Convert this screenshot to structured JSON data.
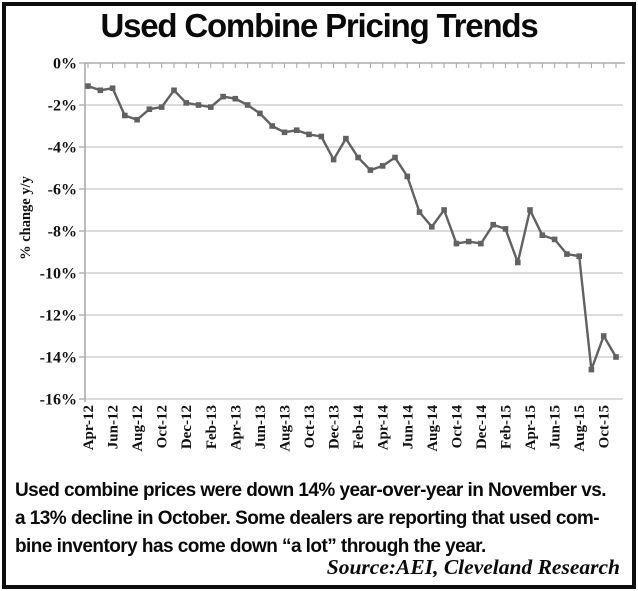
{
  "title": "Used Combine Pricing Trends",
  "chart_data": {
    "type": "line",
    "title": "Used Combine Pricing Trends",
    "ylabel": "% change y/y",
    "ylim": [
      -16,
      0
    ],
    "ytick_step": 2,
    "ytick_labels": [
      "0%",
      "-2%",
      "-4%",
      "-6%",
      "-8%",
      "-10%",
      "-12%",
      "-14%",
      "-16%"
    ],
    "x": [
      "Apr-12",
      "May-12",
      "Jun-12",
      "Jul-12",
      "Aug-12",
      "Sep-12",
      "Oct-12",
      "Nov-12",
      "Dec-12",
      "Jan-13",
      "Feb-13",
      "Mar-13",
      "Apr-13",
      "May-13",
      "Jun-13",
      "Jul-13",
      "Aug-13",
      "Sep-13",
      "Oct-13",
      "Nov-13",
      "Dec-13",
      "Jan-14",
      "Feb-14",
      "Mar-14",
      "Apr-14",
      "May-14",
      "Jun-14",
      "Jul-14",
      "Aug-14",
      "Sep-14",
      "Oct-14",
      "Nov-14",
      "Dec-14",
      "Jan-15",
      "Feb-15",
      "Mar-15",
      "Apr-15",
      "May-15",
      "Jun-15",
      "Jul-15",
      "Aug-15",
      "Sep-15",
      "Oct-15",
      "Nov-15"
    ],
    "values": [
      -1.1,
      -1.3,
      -1.2,
      -2.5,
      -2.7,
      -2.2,
      -2.1,
      -1.3,
      -1.9,
      -2.0,
      -2.1,
      -1.6,
      -1.7,
      -2.0,
      -2.4,
      -3.0,
      -3.3,
      -3.2,
      -3.4,
      -3.5,
      -4.6,
      -3.6,
      -4.5,
      -5.1,
      -4.9,
      -4.5,
      -5.4,
      -7.1,
      -7.8,
      -7.0,
      -8.6,
      -8.5,
      -8.6,
      -7.7,
      -7.9,
      -9.5,
      -7.0,
      -8.2,
      -8.4,
      -9.1,
      -9.2,
      -14.6,
      -13.0,
      -14.0
    ],
    "xtick_labels": [
      "Apr-12",
      "Jun-12",
      "Aug-12",
      "Oct-12",
      "Dec-12",
      "Feb-13",
      "Apr-13",
      "Jun-13",
      "Aug-13",
      "Oct-13",
      "Dec-13",
      "Feb-14",
      "Apr-14",
      "Jun-14",
      "Aug-14",
      "Oct-14",
      "Dec-14",
      "Feb-15",
      "Apr-15",
      "Jun-15",
      "Aug-15",
      "Oct-15"
    ],
    "xtick_every": 2,
    "grid": "horizontal",
    "legend": "none",
    "marker": "square",
    "line_color": "#616161",
    "marker_color": "#616161",
    "grid_color": "#c6c6c6",
    "axis_color": "#ababab",
    "text_color": "#111111"
  },
  "caption": {
    "lines": [
      "Used combine prices were down 14% year-over-year in November vs.",
      "a 13% decline in October. Some dealers are reporting that used com-",
      "bine inventory has come down “a lot” through the year."
    ],
    "source": "Source:AEI, Cleveland Research"
  }
}
